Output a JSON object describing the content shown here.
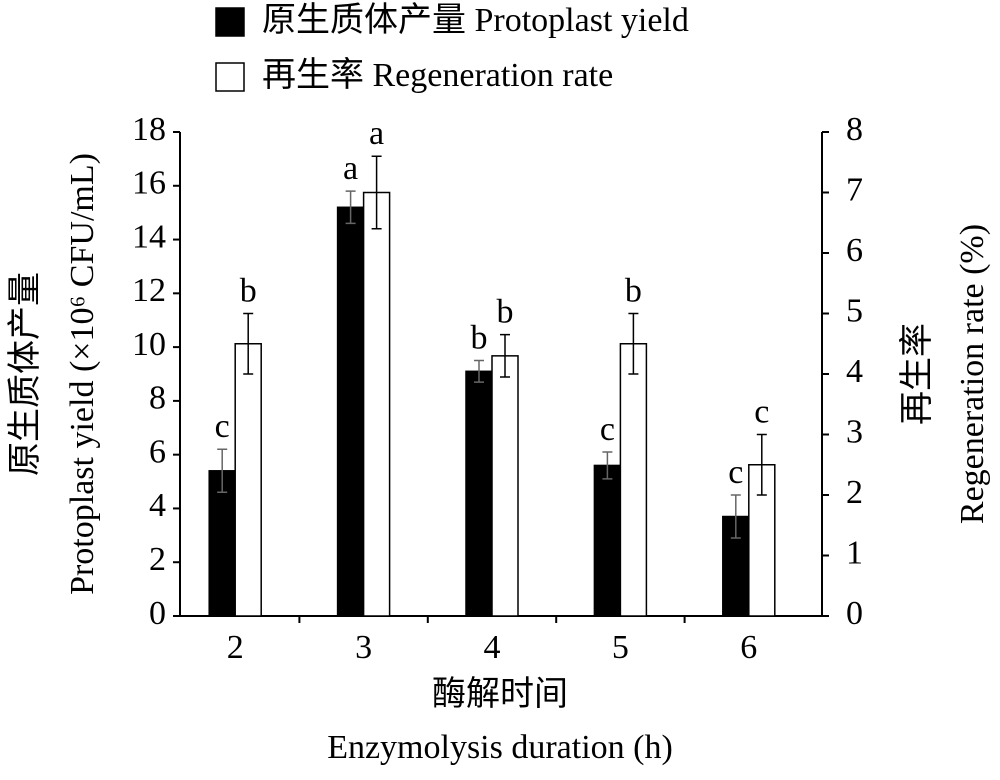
{
  "chart_data": {
    "type": "bar",
    "x_label": "Enzymolysis duration (h)",
    "x_label_cn": "酶解时间",
    "y_label": "Protoplast yield (×10⁶ CFU/mL)",
    "y_label_cn": "原生质体产量",
    "y2_label": "Regeneration rate (%)",
    "y2_label_cn": "再生率",
    "categories": [
      "2",
      "3",
      "4",
      "5",
      "6"
    ],
    "ylim": [
      0,
      18
    ],
    "yticks": [
      0,
      2,
      4,
      6,
      8,
      10,
      12,
      14,
      16,
      18
    ],
    "y2lim": [
      0,
      8
    ],
    "y2ticks": [
      0,
      1,
      2,
      3,
      4,
      5,
      6,
      7,
      8
    ],
    "series": [
      {
        "name": "原生质体产量 Protoplast yield",
        "color": "#000000",
        "axis": "y",
        "values": [
          5.4,
          15.2,
          9.1,
          5.6,
          3.7
        ],
        "errors": [
          0.8,
          0.6,
          0.4,
          0.5,
          0.8
        ],
        "letters": [
          "c",
          "a",
          "b",
          "c",
          "c"
        ]
      },
      {
        "name": "再生率 Regeneration rate",
        "color": "#ffffff",
        "axis": "y2",
        "values": [
          4.5,
          7.0,
          4.3,
          4.5,
          2.5
        ],
        "errors": [
          0.5,
          0.6,
          0.35,
          0.5,
          0.5
        ],
        "letters": [
          "b",
          "a",
          "b",
          "b",
          "c"
        ]
      }
    ]
  }
}
